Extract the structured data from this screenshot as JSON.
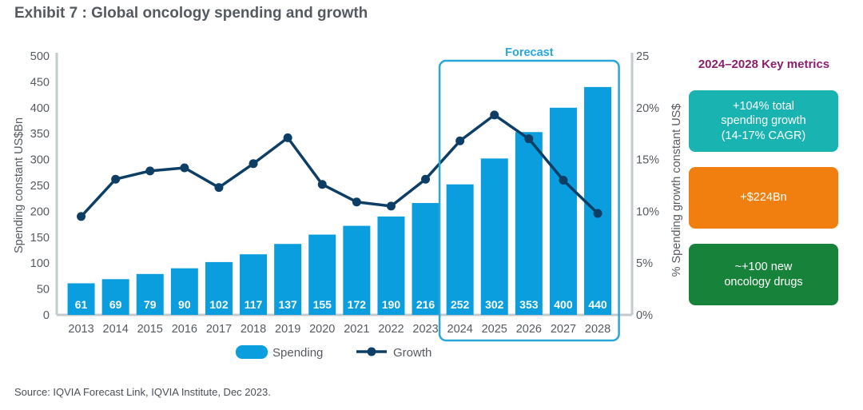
{
  "exhibit_title": "Exhibit 7 : Global oncology spending and growth",
  "forecast_label": "Forecast",
  "key_metrics": {
    "title": "2024–2028 Key metrics",
    "items": [
      {
        "text": "+104% total\nspending growth\n(14-17% CAGR)",
        "color": "#19b3b1"
      },
      {
        "text": "+$224Bn",
        "color": "#f07f10"
      },
      {
        "text": "~+100 new\noncology drugs",
        "color": "#16823a"
      }
    ]
  },
  "source": "Source: IQVIA Forecast Link, IQVIA Institute, Dec 2023.",
  "colors": {
    "bar": "#0a9ede",
    "line": "#0d3f66",
    "forecast_box": "#29a8d8",
    "axis_text": "#555a60",
    "axis_line": "#c4c9ce"
  },
  "chart_data": {
    "type": "bar",
    "categories": [
      "2013",
      "2014",
      "2015",
      "2016",
      "2017",
      "2018",
      "2019",
      "2020",
      "2021",
      "2022",
      "2023",
      "2024",
      "2025",
      "2026",
      "2027",
      "2028"
    ],
    "series": [
      {
        "name": "Spending",
        "type": "bar",
        "axis": "left",
        "values": [
          61,
          69,
          79,
          90,
          102,
          117,
          137,
          155,
          172,
          190,
          216,
          252,
          302,
          353,
          400,
          440
        ],
        "labels": [
          "61",
          "69",
          "79",
          "90",
          "102",
          "117",
          "137",
          "155",
          "172",
          "190",
          "216",
          "252",
          "302",
          "353",
          "400",
          "440"
        ]
      },
      {
        "name": "Growth",
        "type": "line",
        "axis": "right",
        "values": [
          9.5,
          13.1,
          13.9,
          14.2,
          12.3,
          14.6,
          17.1,
          12.6,
          10.9,
          10.5,
          13.1,
          16.8,
          19.3,
          17.0,
          13.0,
          9.8
        ]
      }
    ],
    "ylabel": "Spending constant US$Bn",
    "y2label": "% Spending growth constant US$",
    "ylim": [
      0,
      500
    ],
    "yticks": [
      "0",
      "50",
      "100",
      "150",
      "200",
      "250",
      "300",
      "350",
      "400",
      "450",
      "500"
    ],
    "y2lim": [
      0,
      25
    ],
    "y2ticks": [
      "0%",
      "5%",
      "10%",
      "15%",
      "20%",
      "25"
    ],
    "forecast_range": [
      "2024",
      "2028"
    ],
    "legend_position": "bottom-center",
    "grid": false
  }
}
